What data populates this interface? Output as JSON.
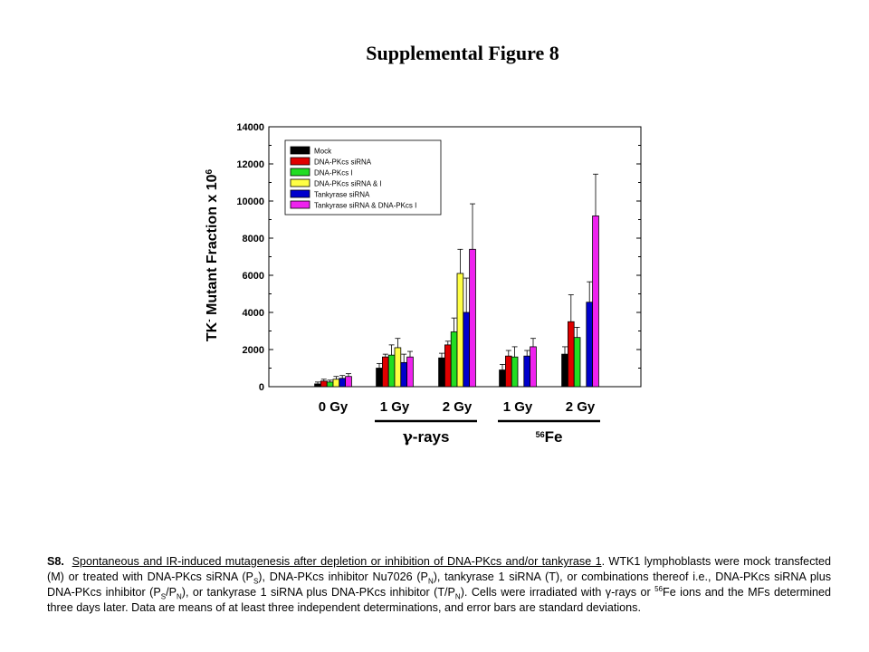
{
  "figure": {
    "title": "Supplemental Figure 8"
  },
  "chart_data": {
    "type": "bar",
    "ylabel_main": "TK",
    "ylabel_super": "-",
    "ylabel_rest": " Mutant Fraction x 10",
    "ylabel_exp": "6",
    "ylim": [
      0,
      14000
    ],
    "yticks": [
      "0",
      "2000",
      "4000",
      "6000",
      "8000",
      "10000",
      "12000",
      "14000"
    ],
    "grid": false,
    "legend_position": "top-left",
    "categories": [
      "0 Gy",
      "1 Gy",
      "2 Gy",
      "1 Gy",
      "2 Gy"
    ],
    "groups": [
      {
        "label_main": "",
        "label_greek": "γ",
        "label_rest": "-rays",
        "categories": [
          1,
          2
        ]
      },
      {
        "label_main": "",
        "label_sup": "56",
        "label_rest": "Fe",
        "categories": [
          3,
          4
        ]
      }
    ],
    "colors": [
      "#000000",
      "#e00000",
      "#22dd22",
      "#ffff44",
      "#0000cc",
      "#ee22ee"
    ],
    "series": [
      {
        "name": "Mock",
        "values": [
          150,
          1000,
          1550,
          900,
          1750
        ],
        "errors": [
          100,
          250,
          250,
          300,
          400
        ]
      },
      {
        "name": "DNA-PKcs siRNA",
        "values": [
          300,
          1600,
          2250,
          1650,
          3500
        ],
        "errors": [
          100,
          150,
          200,
          300,
          1450
        ]
      },
      {
        "name": "DNA-PKcs I",
        "values": [
          250,
          1700,
          2950,
          1600,
          2650
        ],
        "errors": [
          100,
          550,
          750,
          550,
          550
        ]
      },
      {
        "name": "DNA-PKcs siRNA & I",
        "values": [
          400,
          2100,
          6100,
          null,
          null
        ],
        "errors": [
          150,
          500,
          1300,
          null,
          null
        ]
      },
      {
        "name": "Tankyrase siRNA",
        "values": [
          450,
          1300,
          4000,
          1650,
          4550
        ],
        "errors": [
          150,
          450,
          1850,
          300,
          1100
        ]
      },
      {
        "name": "Tankyrase siRNA & DNA-PKcs I",
        "values": [
          550,
          1600,
          7400,
          2150,
          9200
        ],
        "errors": [
          150,
          300,
          2450,
          450,
          2250
        ]
      }
    ]
  },
  "caption": {
    "lead": "S8.",
    "underlined": "Spontaneous and IR-induced mutagenesis after depletion or inhibition of DNA-PKcs and/or tankyrase 1",
    "t1": ".  WTK1 lymphoblasts were mock transfected (M) or treated with DNA-PKcs siRNA (P",
    "s1": "S",
    "t2": "), DNA-PKcs inhibitor Nu7026 (P",
    "s2": "N",
    "t3": "), tankyrase 1 siRNA (T), or combinations thereof i.e., DNA-PKcs siRNA plus DNA-PKcs inhibitor (P",
    "s3": "S",
    "t4": "/P",
    "s4": "N",
    "t5": "), or tankyrase 1 siRNA plus DNA-PKcs inhibitor (T/P",
    "s5": "N",
    "t6": ").  Cells were irradiated with ",
    "greek": "γ",
    "t7": "-rays or ",
    "sup56": "56",
    "t8": "Fe ions and the MFs determined three days later.  Data are means of at least three independent determinations, and error bars are standard deviations."
  }
}
